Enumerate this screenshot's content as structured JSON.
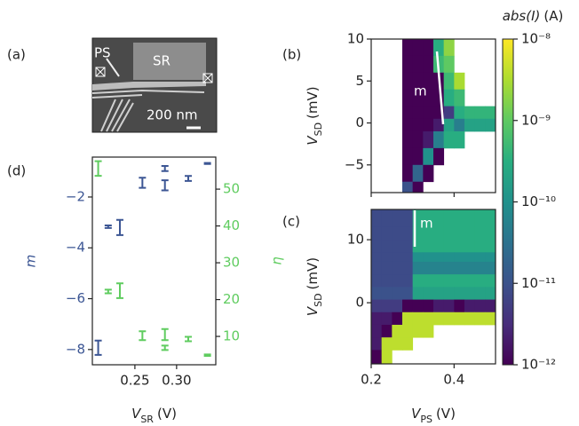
{
  "figure": {
    "panel_labels": [
      "(a)",
      "(b)",
      "(c)",
      "(d)"
    ],
    "sem_image": {
      "labels": [
        "PS",
        "SR"
      ],
      "scale_bar": "200 nm"
    }
  },
  "chart_data": [
    {
      "type": "errorbar",
      "xlabel": {
        "symbol": "V",
        "subscript": "SR",
        "unit": "(V)"
      },
      "ylabel": "m",
      "y2label": "η",
      "xlim": [
        0.199,
        0.347
      ],
      "xticks": [
        0.25,
        {
          "value": 0.3,
          "label": "0.30"
        }
      ],
      "ylim": [
        -8.6,
        -0.43
      ],
      "yticks": [
        {
          "value": -2,
          "label": "−2"
        },
        {
          "value": -4,
          "label": "−4"
        },
        {
          "value": -6,
          "label": "−6"
        },
        {
          "value": -8,
          "label": "−8"
        }
      ],
      "y2lim": [
        2.3,
        58.7
      ],
      "y2ticks": [
        10,
        20,
        30,
        40,
        50
      ],
      "series": [
        {
          "name": "m",
          "color": "#3c5694",
          "axis": "y",
          "x": [
            0.206,
            0.218,
            0.232,
            0.259,
            0.286,
            0.286,
            0.314,
            0.337
          ],
          "values": [
            -7.93,
            -3.17,
            -3.2,
            -1.44,
            -0.88,
            -1.54,
            -1.27,
            -0.68
          ],
          "errors": [
            0.28,
            0.05,
            0.3,
            0.2,
            0.1,
            0.2,
            0.1,
            0.02
          ]
        },
        {
          "name": "η",
          "color": "#5fcc5f",
          "axis": "y2",
          "x": [
            0.206,
            0.218,
            0.232,
            0.259,
            0.286,
            0.286,
            0.314,
            0.337
          ],
          "values": [
            55.6,
            22.2,
            22.4,
            10.2,
            10.5,
            6.9,
            9.3,
            4.9
          ],
          "errors": [
            2,
            0.5,
            2,
            1.2,
            1.5,
            0.6,
            0.6,
            0.2
          ]
        }
      ]
    },
    {
      "type": "heatmap",
      "annotation": "m",
      "ylabel": {
        "symbol": "V",
        "subscript": "SD",
        "unit": "(mV)"
      },
      "xlim": [
        0.2,
        0.5
      ],
      "xticks": [
        0.2,
        0.4
      ],
      "xticklabels": false,
      "ylim": [
        -8.3,
        10
      ],
      "yticks": [
        10,
        5,
        0,
        {
          "value": -5,
          "label": "−5"
        }
      ],
      "xbins": [
        0.2,
        0.225,
        0.25,
        0.275,
        0.3,
        0.325,
        0.35,
        0.375,
        0.4,
        0.425,
        0.45,
        0.475,
        0.5
      ],
      "ybins": [
        10,
        8,
        6,
        4,
        2,
        0.5,
        -1,
        -3,
        -5,
        -7,
        -8.3
      ],
      "z": [
        [
          null,
          null,
          null,
          1e-12,
          1e-12,
          1e-12,
          3e-10,
          2e-09,
          null,
          null,
          null,
          null
        ],
        [
          null,
          null,
          null,
          1e-12,
          1e-12,
          1e-12,
          5e-10,
          1e-09,
          null,
          null,
          null,
          null
        ],
        [
          null,
          null,
          null,
          1e-12,
          1e-12,
          1e-12,
          1e-12,
          5e-10,
          3e-09,
          null,
          null,
          null
        ],
        [
          null,
          null,
          null,
          1e-12,
          1e-12,
          1e-12,
          1e-12,
          3e-10,
          5e-10,
          null,
          null,
          null
        ],
        [
          null,
          null,
          null,
          1e-12,
          1e-12,
          1e-12,
          1e-12,
          5e-12,
          3e-10,
          4e-10,
          4e-10,
          4e-10
        ],
        [
          null,
          null,
          null,
          1e-12,
          1e-12,
          1e-12,
          2e-12,
          2e-10,
          5e-11,
          2e-10,
          2e-10,
          2e-10
        ],
        [
          null,
          null,
          null,
          1e-12,
          1e-12,
          2e-12,
          5e-11,
          3e-10,
          3e-10,
          null,
          null,
          null
        ],
        [
          null,
          null,
          null,
          1e-12,
          1e-12,
          1e-10,
          1e-12,
          null,
          null,
          null,
          null,
          null
        ],
        [
          null,
          null,
          null,
          1e-12,
          2e-11,
          1e-12,
          null,
          null,
          null,
          null,
          null,
          null
        ],
        [
          null,
          null,
          null,
          1e-11,
          1e-12,
          null,
          null,
          null,
          null,
          null,
          null,
          null
        ]
      ]
    },
    {
      "type": "heatmap",
      "annotation": "m",
      "xlabel": {
        "symbol": "V",
        "subscript": "PS",
        "unit": "(V)"
      },
      "ylabel": {
        "symbol": "V",
        "subscript": "SD",
        "unit": "(mV)"
      },
      "xlim": [
        0.2,
        0.5
      ],
      "xticks": [
        0.2,
        0.4
      ],
      "xticklabels": true,
      "ylim": [
        -9.7,
        14.8
      ],
      "yticks": [
        10,
        0
      ],
      "xbins": [
        0.2,
        0.225,
        0.25,
        0.275,
        0.3,
        0.325,
        0.35,
        0.375,
        0.4,
        0.425,
        0.45,
        0.475,
        0.5
      ],
      "ybins": [
        14.8,
        12,
        10,
        8,
        6.5,
        4.5,
        2.5,
        0.5,
        -1.5,
        -3.5,
        -5.5,
        -7.5,
        -9.7
      ],
      "z": [
        [
          8e-12,
          8e-12,
          8e-12,
          8e-12,
          3e-10,
          3e-10,
          3e-10,
          3e-10,
          3e-10,
          3e-10,
          3e-10,
          3e-10
        ],
        [
          8e-12,
          8e-12,
          8e-12,
          8e-12,
          3e-10,
          3e-10,
          3e-10,
          3e-10,
          3e-10,
          3e-10,
          3e-10,
          3e-10
        ],
        [
          8e-12,
          8e-12,
          8e-12,
          8e-12,
          3e-10,
          3e-10,
          3e-10,
          3e-10,
          3e-10,
          3e-10,
          3e-10,
          3e-10
        ],
        [
          8e-12,
          8e-12,
          8e-12,
          8e-12,
          1e-10,
          1e-10,
          1e-10,
          1e-10,
          1e-10,
          1e-10,
          1e-10,
          1e-10
        ],
        [
          8e-12,
          8e-12,
          8e-12,
          8e-12,
          6e-11,
          6e-11,
          6e-11,
          6e-11,
          6e-11,
          6e-11,
          6e-11,
          6e-11
        ],
        [
          8e-12,
          8e-12,
          8e-12,
          8e-12,
          3e-10,
          3e-10,
          3e-10,
          3e-10,
          3e-10,
          3e-10,
          3e-10,
          3e-10
        ],
        [
          1e-11,
          1e-11,
          1e-11,
          1e-11,
          2e-10,
          2e-10,
          2e-10,
          2e-10,
          2e-10,
          2e-10,
          2e-10,
          2e-10
        ],
        [
          5e-12,
          5e-12,
          5e-12,
          1e-12,
          1e-12,
          1e-12,
          2e-12,
          2e-12,
          1e-12,
          2e-12,
          2e-12,
          2e-12
        ],
        [
          2e-12,
          2e-12,
          1e-12,
          4e-09,
          4e-09,
          4e-09,
          4e-09,
          4e-09,
          4e-09,
          4e-09,
          4e-09,
          4e-09
        ],
        [
          2e-12,
          1e-12,
          4e-09,
          4e-09,
          4e-09,
          4e-09,
          null,
          null,
          null,
          null,
          null,
          null
        ],
        [
          2e-12,
          4e-09,
          4e-09,
          4e-09,
          null,
          null,
          null,
          null,
          null,
          null,
          null,
          null
        ],
        [
          1e-12,
          4e-09,
          null,
          null,
          null,
          null,
          null,
          null,
          null,
          null,
          null,
          null
        ]
      ]
    },
    {
      "type": "colorbar",
      "colormap": "viridis",
      "log": true,
      "label": {
        "quantity": "abs(I)",
        "unit": "(A)"
      },
      "zlim": [
        1e-12,
        1e-08
      ],
      "zticks": [
        {
          "value": 1e-08,
          "label": "10⁻⁸"
        },
        {
          "value": 1e-09,
          "label": "10⁻⁹"
        },
        {
          "value": 1e-10,
          "label": "10⁻¹⁰"
        },
        {
          "value": 1e-11,
          "label": "10⁻¹¹"
        },
        {
          "value": 1e-12,
          "label": "10⁻¹²"
        }
      ]
    }
  ]
}
